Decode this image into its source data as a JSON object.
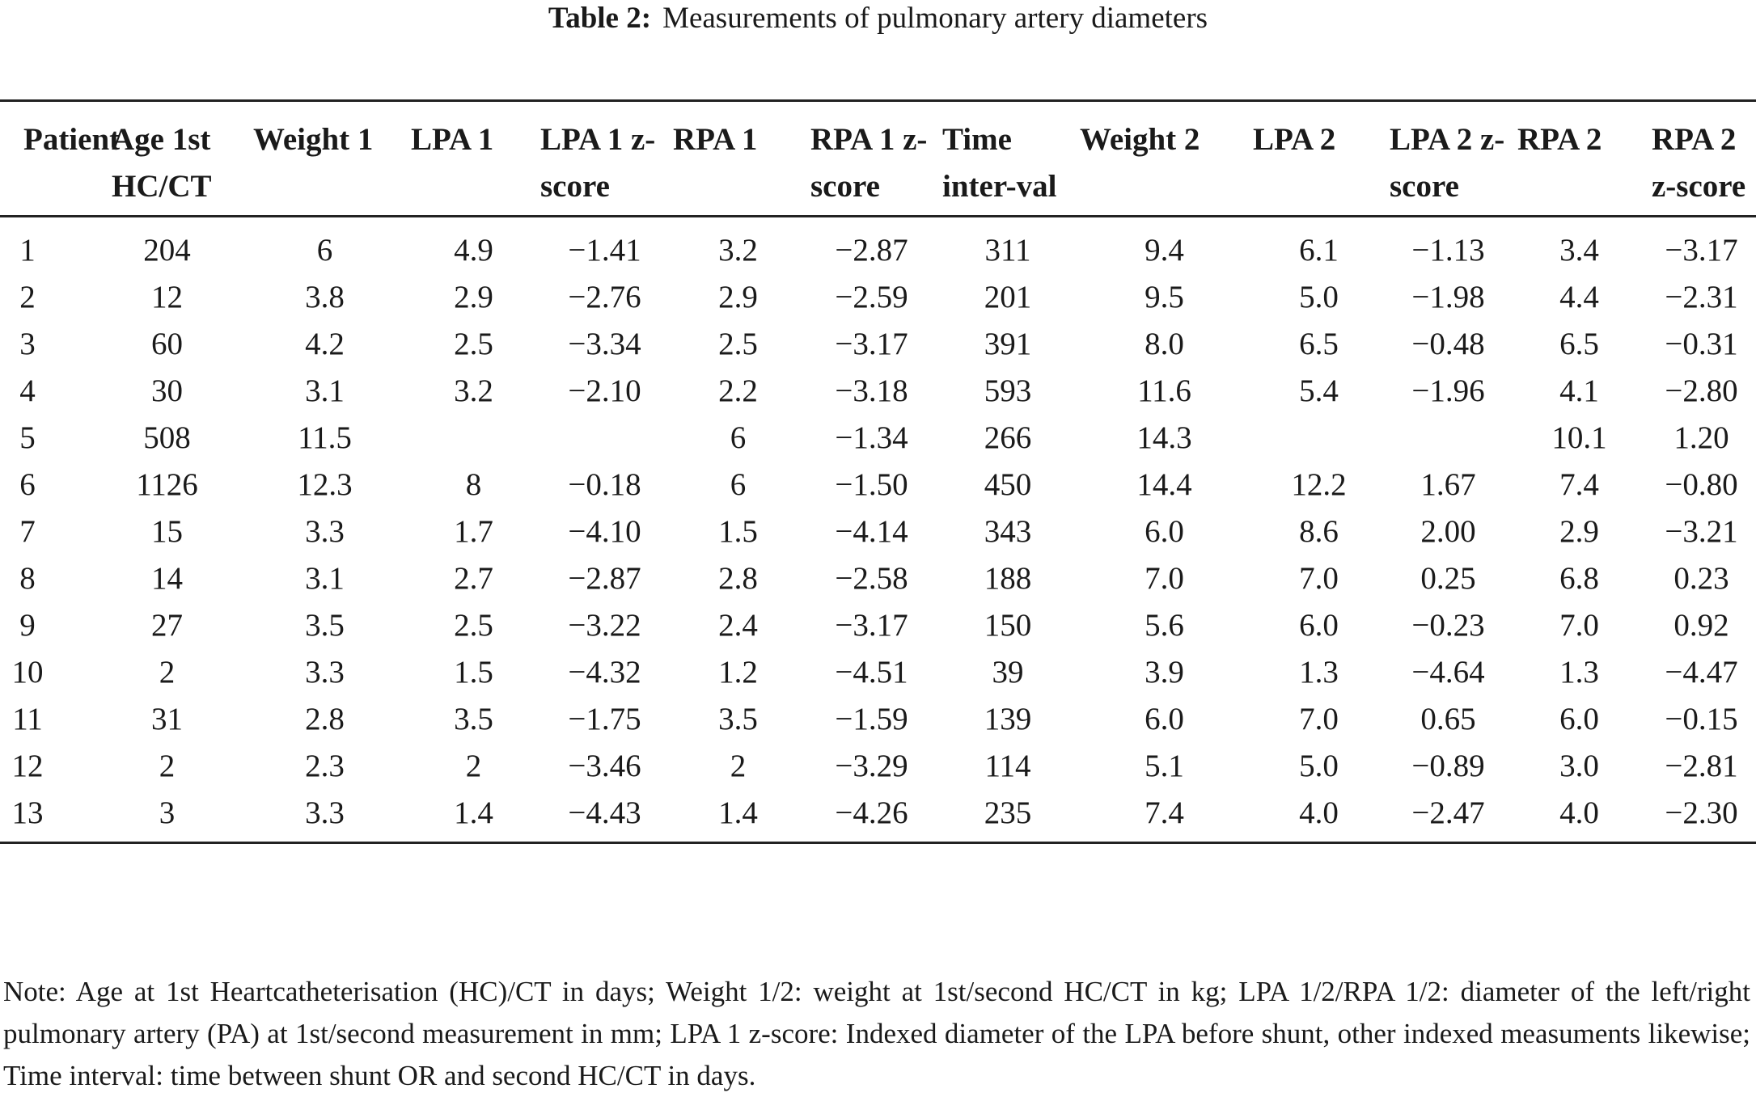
{
  "caption": {
    "label": "Table 2:",
    "title": "Measurements of pulmonary artery diameters"
  },
  "table": {
    "columns": [
      "Patient",
      "Age 1st HC/CT",
      "Weight 1",
      "LPA 1",
      "LPA 1 z-score",
      "RPA 1",
      "RPA 1 z-score",
      "Time inter-val",
      "Weight 2",
      "LPA 2",
      "LPA 2 z-score",
      "RPA 2",
      "RPA 2 z-score"
    ],
    "rows": [
      [
        "1",
        "204",
        "6",
        "4.9",
        "−1.41",
        "3.2",
        "−2.87",
        "311",
        "9.4",
        "6.1",
        "−1.13",
        "3.4",
        "−3.17"
      ],
      [
        "2",
        "12",
        "3.8",
        "2.9",
        "−2.76",
        "2.9",
        "−2.59",
        "201",
        "9.5",
        "5.0",
        "−1.98",
        "4.4",
        "−2.31"
      ],
      [
        "3",
        "60",
        "4.2",
        "2.5",
        "−3.34",
        "2.5",
        "−3.17",
        "391",
        "8.0",
        "6.5",
        "−0.48",
        "6.5",
        "−0.31"
      ],
      [
        "4",
        "30",
        "3.1",
        "3.2",
        "−2.10",
        "2.2",
        "−3.18",
        "593",
        "11.6",
        "5.4",
        "−1.96",
        "4.1",
        "−2.80"
      ],
      [
        "5",
        "508",
        "11.5",
        "",
        "",
        "6",
        "−1.34",
        "266",
        "14.3",
        "",
        "",
        "10.1",
        "1.20"
      ],
      [
        "6",
        "1126",
        "12.3",
        "8",
        "−0.18",
        "6",
        "−1.50",
        "450",
        "14.4",
        "12.2",
        "1.67",
        "7.4",
        "−0.80"
      ],
      [
        "7",
        "15",
        "3.3",
        "1.7",
        "−4.10",
        "1.5",
        "−4.14",
        "343",
        "6.0",
        "8.6",
        "2.00",
        "2.9",
        "−3.21"
      ],
      [
        "8",
        "14",
        "3.1",
        "2.7",
        "−2.87",
        "2.8",
        "−2.58",
        "188",
        "7.0",
        "7.0",
        "0.25",
        "6.8",
        "0.23"
      ],
      [
        "9",
        "27",
        "3.5",
        "2.5",
        "−3.22",
        "2.4",
        "−3.17",
        "150",
        "5.6",
        "6.0",
        "−0.23",
        "7.0",
        "0.92"
      ],
      [
        "10",
        "2",
        "3.3",
        "1.5",
        "−4.32",
        "1.2",
        "−4.51",
        "39",
        "3.9",
        "1.3",
        "−4.64",
        "1.3",
        "−4.47"
      ],
      [
        "11",
        "31",
        "2.8",
        "3.5",
        "−1.75",
        "3.5",
        "−1.59",
        "139",
        "6.0",
        "7.0",
        "0.65",
        "6.0",
        "−0.15"
      ],
      [
        "12",
        "2",
        "2.3",
        "2",
        "−3.46",
        "2",
        "−3.29",
        "114",
        "5.1",
        "5.0",
        "−0.89",
        "3.0",
        "−2.81"
      ],
      [
        "13",
        "3",
        "3.3",
        "1.4",
        "−4.43",
        "1.4",
        "−4.26",
        "235",
        "7.4",
        "4.0",
        "−2.47",
        "4.0",
        "−2.30"
      ]
    ]
  },
  "note": "Note: Age at 1st Heartcatheterisation (HC)/CT in days; Weight 1/2: weight at 1st/second HC/CT in kg; LPA 1/2/RPA 1/2: diameter of the left/right pulmonary artery (PA) at 1st/second measurement in mm; LPA 1 z-score: Indexed diameter of the LPA before shunt, other indexed measuments likewise; Time interval: time between shunt OR and second HC/CT in days."
}
